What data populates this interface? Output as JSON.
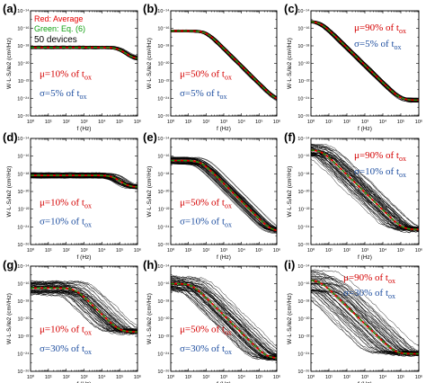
{
  "legend": {
    "red": "Red: Average",
    "green": "Green: Eq. (6)",
    "count": "50 devices"
  },
  "axes": {
    "xlabel": "f (Hz)",
    "ylabel": "W·L·Sᵢ/Iᴆ2 (cm²/Hz)",
    "x_ticks": [
      "10⁰",
      "10¹",
      "10²",
      "10³",
      "10⁴",
      "10⁵",
      "10⁶"
    ],
    "y_ticks": [
      "10⁻²⁶",
      "10⁻²⁴",
      "10⁻²²",
      "10⁻²⁰",
      "10⁻¹⁸",
      "10⁻¹⁶",
      "10⁻¹⁴"
    ]
  },
  "colors": {
    "devices": "#000000",
    "average": "#e60000",
    "model": "#12a012",
    "mu_text": "#d40000",
    "sigma_text": "#1f4fa0"
  },
  "chart_data": [
    {
      "panel": "(a)",
      "type": "line",
      "xscale": "log",
      "yscale": "log",
      "xlim": [
        1,
        1000000
      ],
      "ylim": [
        1e-26,
        1e-14
      ],
      "mu_label": "μ=10% of t",
      "sigma_label": "σ=5% of t",
      "subscript": "ox",
      "mu_pct": 10,
      "sigma_pct": 5,
      "series": [
        {
          "name": "Red: Average"
        },
        {
          "name": "Green: Eq. (6)"
        }
      ],
      "plateau_log": -18.2,
      "corner_log": 5.0,
      "floor_log": -19.5,
      "spread": 0.15,
      "n_devices": 50
    },
    {
      "panel": "(b)",
      "type": "line",
      "xscale": "log",
      "yscale": "log",
      "xlim": [
        1,
        1000000
      ],
      "ylim": [
        1e-26,
        1e-14
      ],
      "mu_label": "μ=50% of t",
      "sigma_label": "σ=5% of t",
      "subscript": "ox",
      "mu_pct": 50,
      "sigma_pct": 5,
      "plateau_log": -16.3,
      "corner_log": 2.0,
      "floor_log": -24.3,
      "spread": 0.12,
      "n_devices": 50
    },
    {
      "panel": "(c)",
      "type": "line",
      "xscale": "log",
      "yscale": "log",
      "xlim": [
        1,
        1000000
      ],
      "ylim": [
        1e-26,
        1e-14
      ],
      "mu_label": "μ=90% of t",
      "sigma_label": "σ=5% of t",
      "subscript": "ox",
      "mu_pct": 90,
      "sigma_pct": 5,
      "plateau_log": -15.2,
      "corner_log": 0.5,
      "floor_log": -24.2,
      "spread": 0.12,
      "n_devices": 50
    },
    {
      "panel": "(d)",
      "type": "line",
      "xscale": "log",
      "yscale": "log",
      "xlim": [
        1,
        1000000
      ],
      "ylim": [
        1e-26,
        1e-14
      ],
      "mu_label": "μ=10% of t",
      "sigma_label": "σ=10% of t",
      "subscript": "ox",
      "mu_pct": 10,
      "sigma_pct": 10,
      "plateau_log": -18.2,
      "corner_log": 4.7,
      "floor_log": -19.5,
      "spread": 0.35,
      "n_devices": 50
    },
    {
      "panel": "(e)",
      "type": "line",
      "xscale": "log",
      "yscale": "log",
      "xlim": [
        1,
        1000000
      ],
      "ylim": [
        1e-26,
        1e-14
      ],
      "mu_label": "μ=50% of t",
      "sigma_label": "σ=10% of t",
      "subscript": "ox",
      "mu_pct": 50,
      "sigma_pct": 10,
      "plateau_log": -16.5,
      "corner_log": 1.7,
      "floor_log": -24.5,
      "spread": 0.4,
      "n_devices": 50
    },
    {
      "panel": "(f)",
      "type": "line",
      "xscale": "log",
      "yscale": "log",
      "xlim": [
        1,
        1000000
      ],
      "ylim": [
        1e-26,
        1e-14
      ],
      "mu_label": "μ=90% of t",
      "sigma_label": "σ=10% of t",
      "subscript": "ox",
      "mu_pct": 90,
      "sigma_pct": 10,
      "plateau_log": -15.3,
      "corner_log": 0.6,
      "floor_log": -24.3,
      "spread": 0.7,
      "n_devices": 50
    },
    {
      "panel": "(g)",
      "type": "line",
      "xscale": "log",
      "yscale": "log",
      "xlim": [
        1,
        1000000
      ],
      "ylim": [
        1e-26,
        1e-14
      ],
      "mu_label": "μ=10% of t",
      "sigma_label": "σ=30% of t",
      "subscript": "ox",
      "mu_pct": 10,
      "sigma_pct": 30,
      "plateau_log": -16.5,
      "corner_log": 2.5,
      "floor_log": -21.5,
      "spread": 0.8,
      "n_devices": 50
    },
    {
      "panel": "(h)",
      "type": "line",
      "xscale": "log",
      "yscale": "log",
      "xlim": [
        1,
        1000000
      ],
      "ylim": [
        1e-26,
        1e-14
      ],
      "mu_label": "μ=50% of t",
      "sigma_label": "σ=30% of t",
      "subscript": "ox",
      "mu_pct": 50,
      "sigma_pct": 30,
      "plateau_log": -16.0,
      "corner_log": 1.2,
      "floor_log": -24.5,
      "spread": 0.8,
      "n_devices": 50
    },
    {
      "panel": "(i)",
      "type": "line",
      "xscale": "log",
      "yscale": "log",
      "xlim": [
        1,
        1000000
      ],
      "ylim": [
        1e-26,
        1e-14
      ],
      "mu_label": "μ=90% of t",
      "sigma_label": "σ=30% of t",
      "subscript": "ox",
      "mu_pct": 90,
      "sigma_pct": 30,
      "plateau_log": -15.6,
      "corner_log": 0.5,
      "floor_log": -24.0,
      "spread": 1.3,
      "n_devices": 50
    }
  ]
}
